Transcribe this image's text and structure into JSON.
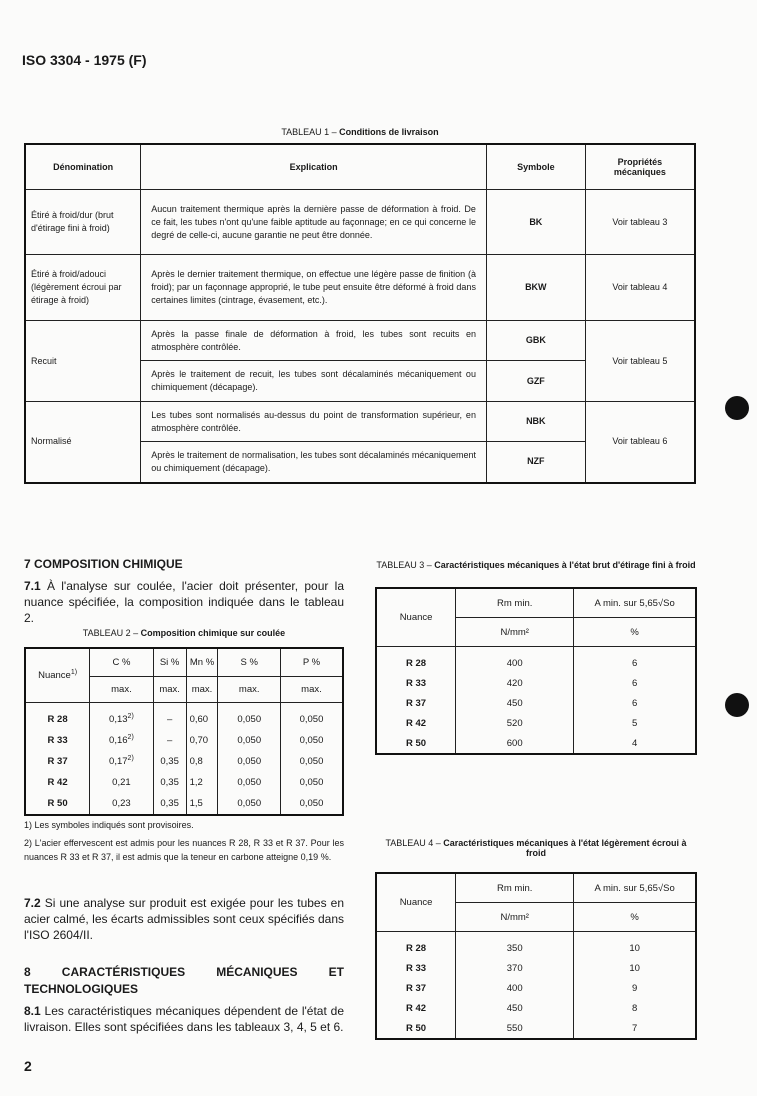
{
  "header": "ISO 3304 - 1975 (F)",
  "table1": {
    "caption_prefix": "TABLEAU 1 – ",
    "caption": "Conditions de livraison",
    "headers": [
      "Dénomination",
      "Explication",
      "Symbole",
      "Propriétés mécaniques"
    ],
    "rows": [
      {
        "denom": "Étiré à froid/dur (brut d'étirage fini à froid)",
        "expl": "Aucun traitement thermique après la dernière passe de déformation à froid. De ce fait, les tubes n'ont qu'une faible aptitude au façonnage; en ce qui concerne le degré de celle-ci, aucune garantie ne peut être donnée.",
        "sym": "BK",
        "prop": "Voir tableau 3"
      },
      {
        "denom": "Étiré à froid/adouci (légèrement écroui par étirage à froid)",
        "expl": "Après le dernier traitement thermique, on effectue une légère passe de finition (à froid); par un façonnage approprié, le tube peut ensuite être déformé à froid dans certaines limites (cintrage, évasement, etc.).",
        "sym": "BKW",
        "prop": "Voir tableau 4"
      },
      {
        "denom": "Recuit",
        "expl": "Après la passe finale de déformation à froid, les tubes sont recuits en atmosphère contrôlée.",
        "sym": "GBK",
        "prop": "Voir tableau 5"
      },
      {
        "expl": "Après le traitement de recuit, les tubes sont décalaminés mécaniquement ou chimiquement (décapage).",
        "sym": "GZF"
      },
      {
        "denom": "Normalisé",
        "expl": "Les tubes sont normalisés au-dessus du point de transformation supérieur, en atmosphère contrôlée.",
        "sym": "NBK",
        "prop": "Voir tableau 6"
      },
      {
        "expl": "Après le traitement de normalisation, les tubes sont décalaminés mécaniquement ou chimiquement (décapage).",
        "sym": "NZF"
      }
    ]
  },
  "s7": {
    "title": "7  COMPOSITION CHIMIQUE",
    "p1_num": "7.1",
    "p1": " À l'analyse sur coulée, l'acier doit présenter, pour la nuance spécifiée, la composition indiquée dans le tableau 2."
  },
  "table2": {
    "caption_prefix": "TABLEAU 2 – ",
    "caption": "Composition chimique sur coulée",
    "nuance": "Nuance",
    "nuance_sup": "1)",
    "elements": [
      "C %",
      "Si %",
      "Mn %",
      "S %",
      "P %"
    ],
    "sub": "max.",
    "rows": [
      [
        "R 28",
        "0,13",
        "2)",
        "–",
        "0,60",
        "0,050",
        "0,050"
      ],
      [
        "R 33",
        "0,16",
        "2)",
        "–",
        "0,70",
        "0,050",
        "0,050"
      ],
      [
        "R 37",
        "0,17",
        "2)",
        "0,35",
        "0,8",
        "0,050",
        "0,050"
      ],
      [
        "R 42",
        "0,21",
        "",
        "0,35",
        "1,2",
        "0,050",
        "0,050"
      ],
      [
        "R 50",
        "0,23",
        "",
        "0,35",
        "1,5",
        "0,050",
        "0,050"
      ]
    ]
  },
  "footnotes": [
    "1)  Les symboles indiqués sont provisoires.",
    "2)  L'acier effervescent est admis pour les nuances R 28, R 33 et R 37. Pour les nuances R 33 et R 37, il est admis que la teneur en carbone atteigne 0,19 %."
  ],
  "s72": {
    "num": "7.2",
    "text": " Si une analyse sur produit est exigée pour les tubes en acier calmé, les écarts admissibles sont ceux spécifiés dans l'ISO 2604/II."
  },
  "s8": {
    "title": "8  CARACTÉRISTIQUES MÉCANIQUES ET TECHNOLOGIQUES",
    "p_num": "8.1",
    "p": " Les caractéristiques mécaniques dépendent de l'état de livraison. Elles sont spécifiées dans les tableaux 3, 4, 5 et 6."
  },
  "page_number": "2",
  "mech_headers": {
    "nuance": "Nuance",
    "rm": "Rm min.",
    "a": "A min. sur 5,65√So",
    "unit_rm": "N/mm²",
    "unit_a": "%"
  },
  "table3": {
    "caption_prefix": "TABLEAU 3 – ",
    "caption": "Caractéristiques mécaniques à l'état brut d'étirage fini à froid",
    "rows": [
      [
        "R 28",
        "400",
        "6"
      ],
      [
        "R 33",
        "420",
        "6"
      ],
      [
        "R 37",
        "450",
        "6"
      ],
      [
        "R 42",
        "520",
        "5"
      ],
      [
        "R 50",
        "600",
        "4"
      ]
    ]
  },
  "table4": {
    "caption_prefix": "TABLEAU 4 – ",
    "caption": "Caractéristiques mécaniques à l'état légèrement écroui à froid",
    "rows": [
      [
        "R 28",
        "350",
        "10"
      ],
      [
        "R 33",
        "370",
        "10"
      ],
      [
        "R 37",
        "400",
        "9"
      ],
      [
        "R 42",
        "450",
        "8"
      ],
      [
        "R 50",
        "550",
        "7"
      ]
    ]
  }
}
